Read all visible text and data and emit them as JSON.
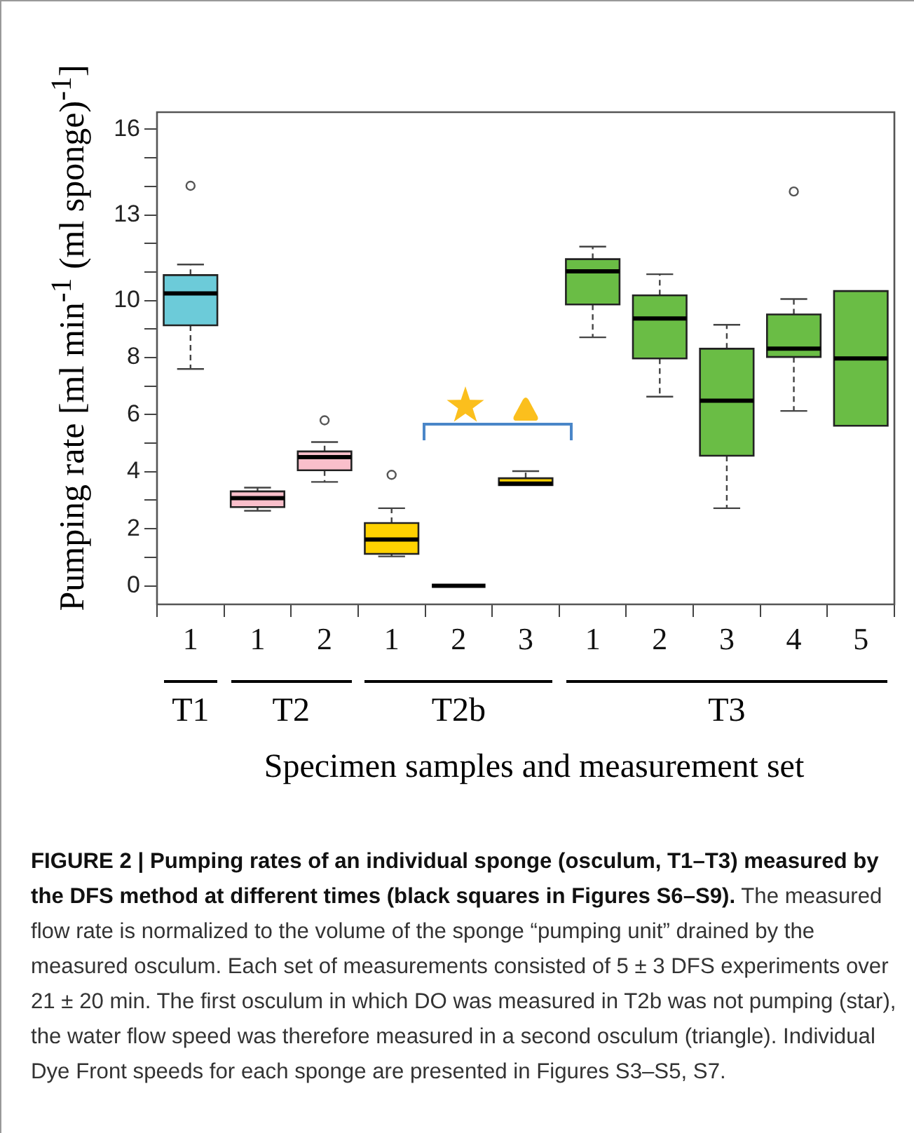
{
  "chart_data": {
    "type": "box",
    "xlabel": "Specimen samples and measurement set",
    "ylabel": "Pumping rate [ml min$^{-1}$ (ml sponge)$^{-1}$]",
    "categories": [
      "1",
      "1",
      "2",
      "1",
      "2",
      "3",
      "1",
      "2",
      "3",
      "4",
      "5"
    ],
    "colors": [
      "#6ccbd9",
      "#f9bfcb",
      "#f9bfcb",
      "#ffd200",
      "#000000",
      "#ffd200",
      "#6abd45",
      "#6abd45",
      "#6abd45",
      "#6abd45",
      "#6abd45"
    ],
    "boxes": [
      {
        "low": 7.6,
        "q1": 9.13,
        "median": 10.25,
        "q3": 10.89,
        "high": 11.26,
        "outliers": [
          14.02
        ]
      },
      {
        "low": 2.63,
        "q1": 2.76,
        "median": 3.07,
        "q3": 3.31,
        "high": 3.44
      },
      {
        "low": 3.64,
        "q1": 4.05,
        "median": 4.51,
        "q3": 4.71,
        "high": 5.04,
        "outliers": [
          5.8
        ]
      },
      {
        "low": 1.03,
        "q1": 1.12,
        "median": 1.62,
        "q3": 2.2,
        "high": 2.72,
        "outliers": [
          3.89
        ]
      },
      {
        "low": 0,
        "q1": 0,
        "median": 0,
        "q3": 0,
        "high": 0
      },
      {
        "low": 3.53,
        "q1": 3.53,
        "median": 3.58,
        "q3": 3.77,
        "high": 4.02
      },
      {
        "low": 8.71,
        "q1": 9.86,
        "median": 11.02,
        "q3": 11.45,
        "high": 11.89
      },
      {
        "low": 6.63,
        "q1": 7.97,
        "median": 9.37,
        "q3": 10.18,
        "high": 10.92
      },
      {
        "low": 2.72,
        "q1": 4.56,
        "median": 6.49,
        "q3": 8.31,
        "high": 9.15
      },
      {
        "low": 6.13,
        "q1": 8.02,
        "median": 8.31,
        "q3": 9.51,
        "high": 10.05,
        "outliers": [
          13.82
        ]
      },
      {
        "low": 5.61,
        "q1": 5.61,
        "median": 7.97,
        "q3": 10.33,
        "high": 10.33
      }
    ],
    "ylim": [
      -0.65,
      16.6
    ],
    "yticks": [
      0,
      {
        "value": 1,
        "label": null
      },
      2,
      {
        "value": 3,
        "label": null
      },
      4,
      {
        "value": 5,
        "label": null
      },
      6,
      {
        "value": 7,
        "label": null
      },
      8,
      {
        "value": 9,
        "label": null
      },
      10,
      {
        "value": 11,
        "label": null
      },
      {
        "value": 12,
        "label": null
      },
      13,
      {
        "value": 14,
        "label": null
      },
      {
        "value": 15,
        "label": null
      },
      16
    ],
    "grid": false,
    "legend": false,
    "annotations": [
      "T1",
      "T2",
      "T2b",
      "T3",
      "FIGURE 2 | Pumping rates of an individual sponge (osculum, T1–T3) measured by the DFS method at different times (black squares in Figures S6–S9).",
      "The measured flow rate is normalized to the volume of the sponge “pumping unit” drained by the measured osculum. Each set of measurements consisted of 5 ± 3 DFS experiments over 21 ± 20 min. The first osculum in which DO was measured in T2b was not pumping (star), the water flow speed was therefore measured in a second osculum (triangle). Individual Dye Front speeds for each sponge are presented in Figures S3–S5, S7."
    ]
  }
}
